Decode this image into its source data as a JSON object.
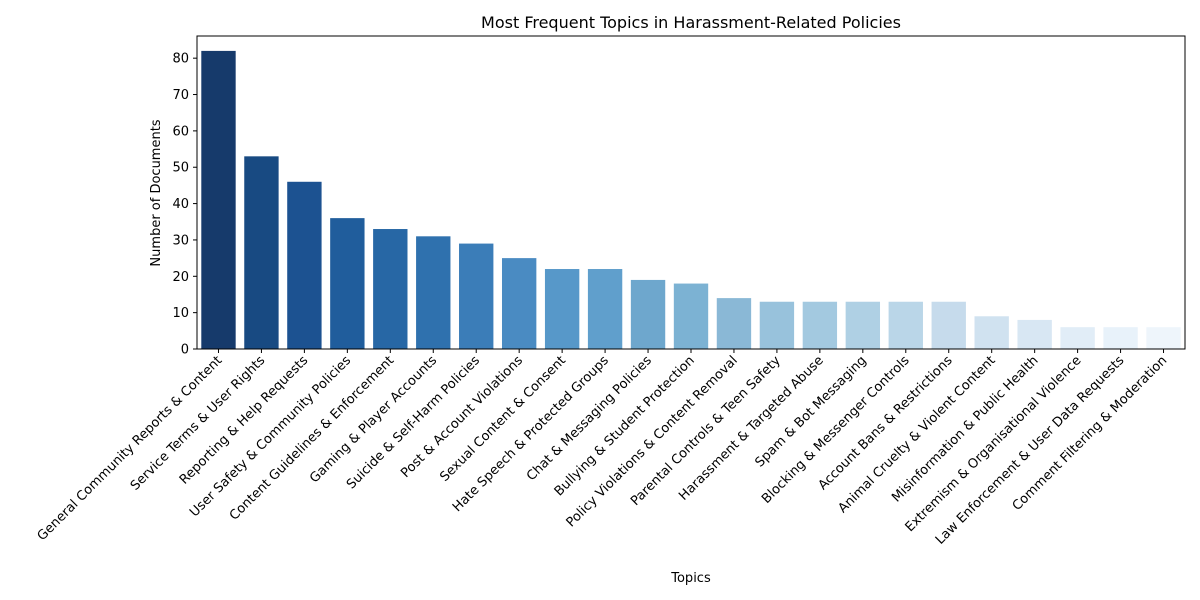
{
  "chart_data": {
    "type": "bar",
    "title": "Most Frequent Topics in Harassment-Related Policies",
    "xlabel": "Topics",
    "ylabel": "Number of Documents",
    "ylim": [
      0,
      86.1
    ],
    "yticks": [
      0,
      10,
      20,
      30,
      40,
      50,
      60,
      70,
      80
    ],
    "grid": false,
    "categories": [
      "General Community Reports & Content",
      "Service Terms & User Rights",
      "Reporting & Help Requests",
      "User Safety & Community Policies",
      "Content Guidelines & Enforcement",
      "Gaming & Player Accounts",
      "Suicide & Self-Harm Policies",
      "Post & Account Violations",
      "Sexual Content & Consent",
      "Hate Speech & Protected Groups",
      "Chat & Messaging Policies",
      "Bullying & Student Protection",
      "Policy Violations & Content Removal",
      "Parental Controls & Teen Safety",
      "Harassment & Targeted Abuse",
      "Spam & Bot Messaging",
      "Blocking & Messenger Controls",
      "Account Bans & Restrictions",
      "Animal Cruelty & Violent Content",
      "Misinformation & Public Health",
      "Extremism & Organisational Violence",
      "Law Enforcement & User Data Requests",
      "Comment Filtering & Moderation"
    ],
    "values": [
      82,
      53,
      46,
      36,
      33,
      31,
      29,
      25,
      22,
      22,
      19,
      18,
      14,
      13,
      13,
      13,
      13,
      13,
      9,
      8,
      6,
      6,
      6
    ],
    "colors": [
      "#163a6b",
      "#184a82",
      "#1c5291",
      "#205d9c",
      "#2767a5",
      "#2f71ae",
      "#3b7db8",
      "#4a8bc2",
      "#5798c9",
      "#609fcc",
      "#6ea7cd",
      "#7cb2d3",
      "#8ab8d6",
      "#98c2dc",
      "#a3c9e0",
      "#afd0e4",
      "#bad6e8",
      "#c6dbec",
      "#d0e2f0",
      "#d8e7f3",
      "#e1edf7",
      "#e8f2fa",
      "#eef5fb"
    ]
  }
}
